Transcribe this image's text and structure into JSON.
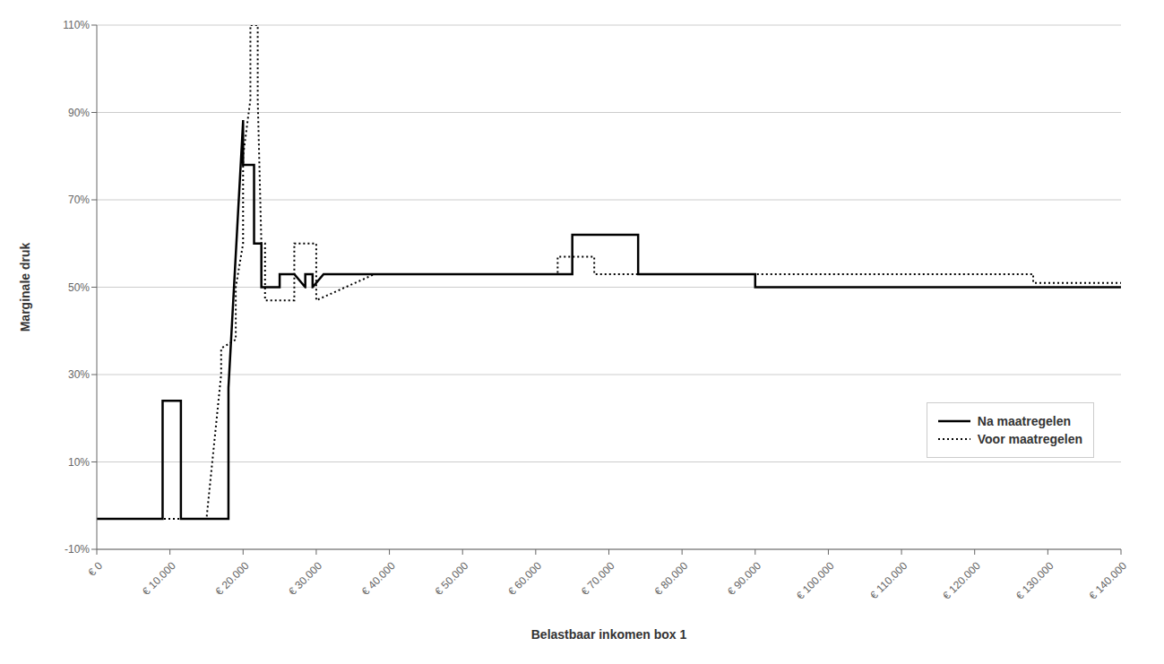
{
  "chart_data": {
    "type": "line",
    "xlabel": "Belastbaar inkomen box 1",
    "ylabel": "Marginale druk",
    "xlim": [
      0,
      140000
    ],
    "ylim": [
      -0.1,
      1.1
    ],
    "yticks": [
      {
        "value": -0.1,
        "label": "-10%"
      },
      {
        "value": 0.1,
        "label": "10%"
      },
      {
        "value": 0.3,
        "label": "30%"
      },
      {
        "value": 0.5,
        "label": "50%"
      },
      {
        "value": 0.7,
        "label": "70%"
      },
      {
        "value": 0.9,
        "label": "90%"
      },
      {
        "value": 1.1,
        "label": "110%"
      }
    ],
    "xticks": [
      {
        "value": 0,
        "label": "€ 0"
      },
      {
        "value": 10000,
        "label": "€ 10.000"
      },
      {
        "value": 20000,
        "label": "€ 20.000"
      },
      {
        "value": 30000,
        "label": "€ 30.000"
      },
      {
        "value": 40000,
        "label": "€ 40.000"
      },
      {
        "value": 50000,
        "label": "€ 50.000"
      },
      {
        "value": 60000,
        "label": "€ 60.000"
      },
      {
        "value": 70000,
        "label": "€ 70.000"
      },
      {
        "value": 80000,
        "label": "€ 80.000"
      },
      {
        "value": 90000,
        "label": "€ 90.000"
      },
      {
        "value": 100000,
        "label": "€ 100.000"
      },
      {
        "value": 110000,
        "label": "€ 110.000"
      },
      {
        "value": 120000,
        "label": "€ 120.000"
      },
      {
        "value": 130000,
        "label": "€ 130.000"
      },
      {
        "value": 140000,
        "label": "€ 140.000"
      }
    ],
    "grid": "y",
    "legend": "lower right",
    "series": [
      {
        "name": "Na maatregelen",
        "color": "black",
        "line_style": "solid",
        "x": [
          0,
          8999,
          9000,
          9001,
          11499,
          11500,
          11501,
          17999,
          18000,
          18001,
          19999,
          20000,
          20001,
          21499,
          21500,
          21501,
          22499,
          22500,
          22501,
          24999,
          25000,
          25001,
          26999,
          27000,
          27001,
          28499,
          28500,
          28501,
          29499,
          29500,
          29501,
          30999,
          31000,
          31001,
          35999,
          36000,
          36001,
          64999,
          65000,
          65001,
          68999,
          69000,
          69001,
          73999,
          74000,
          74001,
          84999,
          85000,
          85001,
          89999,
          90000,
          90001,
          104999,
          105000,
          105001,
          140000
        ],
        "values": [
          -0.03,
          -0.03,
          0.24,
          0.24,
          0.24,
          -0.03,
          -0.03,
          -0.03,
          0.27,
          0.27,
          0.88,
          0.88,
          0.78,
          0.78,
          0.6,
          0.6,
          0.6,
          0.5,
          0.5,
          0.5,
          0.53,
          0.53,
          0.53,
          0.53,
          0.53,
          0.5,
          0.5,
          0.53,
          0.53,
          0.5,
          0.5,
          0.53,
          0.53,
          0.53,
          0.53,
          0.53,
          0.53,
          0.53,
          0.62,
          0.62,
          0.62,
          0.62,
          0.62,
          0.62,
          0.62,
          0.53,
          0.53,
          0.53,
          0.53,
          0.53,
          0.5,
          0.5,
          0.5,
          0.5,
          0.5,
          0.5
        ]
      },
      {
        "name": "Voor maatregelen",
        "color": "black",
        "line_style": "dotted",
        "x": [
          0,
          9999,
          10000,
          10001,
          14999,
          15000,
          15001,
          17000,
          17001,
          18999,
          19000,
          19001,
          19999,
          20000,
          20001,
          20999,
          21000,
          21001,
          22000,
          22001,
          22499,
          22500,
          22501,
          22999,
          23000,
          23001,
          26999,
          27000,
          27001,
          29999,
          30000,
          30001,
          37999,
          38000,
          38001,
          62999,
          63000,
          63001,
          67999,
          68000,
          68001,
          73999,
          74000,
          74001,
          84999,
          85000,
          85001,
          89999,
          90000,
          90001,
          104999,
          105000,
          105001,
          127999,
          128000,
          128001,
          140000
        ],
        "values": [
          -0.03,
          -0.03,
          -0.03,
          -0.03,
          -0.03,
          -0.03,
          -0.03,
          0.3,
          0.36,
          0.38,
          0.4,
          0.5,
          0.6,
          0.63,
          0.8,
          0.93,
          1.1,
          1.1,
          1.1,
          0.93,
          0.6,
          0.6,
          0.6,
          0.6,
          0.47,
          0.47,
          0.47,
          0.6,
          0.6,
          0.6,
          0.47,
          0.47,
          0.53,
          0.53,
          0.53,
          0.53,
          0.57,
          0.57,
          0.57,
          0.57,
          0.53,
          0.53,
          0.53,
          0.53,
          0.53,
          0.53,
          0.53,
          0.53,
          0.53,
          0.53,
          0.53,
          0.53,
          0.53,
          0.53,
          0.51,
          0.51,
          0.51
        ]
      }
    ]
  }
}
